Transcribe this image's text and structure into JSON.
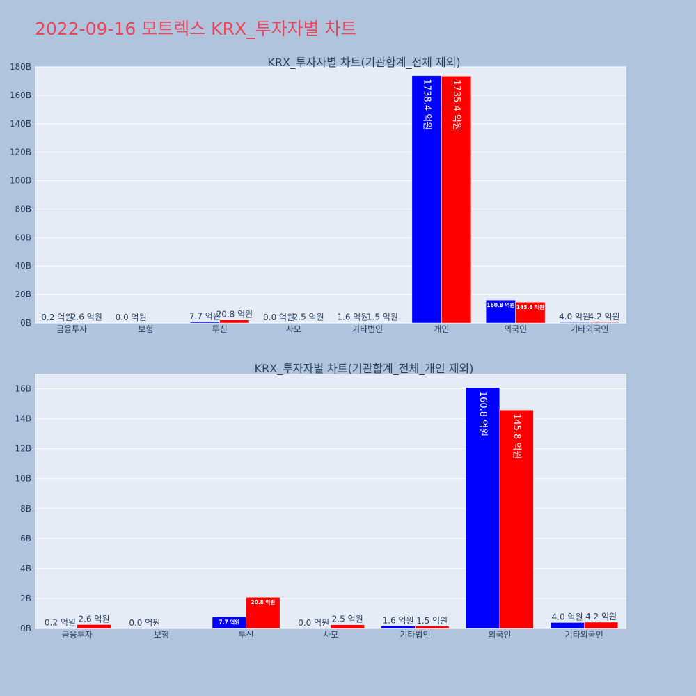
{
  "page_title": "2022-09-16 모트렉스 KRX_투자자별 차트",
  "colors": {
    "background": "#b0c4de",
    "plot_bg": "#e5ecf6",
    "title": "#e8465a",
    "series_buy": "#0000ff",
    "series_sell": "#ff0000"
  },
  "chart_data": [
    {
      "type": "bar",
      "title": "KRX_투자자별 차트(기관합계_전체 제외)",
      "categories": [
        "금융투자",
        "보험",
        "투신",
        "사모",
        "기타법인",
        "개인",
        "외국인",
        "기타외국인"
      ],
      "series": [
        {
          "values": [
            0.02,
            0.0,
            0.77,
            0.0,
            0.16,
            173.84,
            16.08,
            0.4
          ],
          "labels": [
            "0.2 억원",
            "0.0 억원",
            "7.7 억원",
            "0.0 억원",
            "1.6 억원",
            "1738.4 억원",
            "160.8 억원",
            "4.0 억원"
          ]
        },
        {
          "values": [
            0.26,
            0.0,
            2.08,
            0.25,
            0.15,
            173.54,
            14.58,
            0.42
          ],
          "labels": [
            "2.6 억원",
            "",
            "20.8 억원",
            "2.5 억원",
            "1.5 억원",
            "1735.4 억원",
            "145.8 억원",
            "4.2 억원"
          ]
        }
      ],
      "y_unit": "B",
      "ylim": [
        0,
        180
      ],
      "yticks": [
        0,
        20,
        40,
        60,
        80,
        100,
        120,
        140,
        160,
        180
      ],
      "grid": true,
      "legend": "none"
    },
    {
      "type": "bar",
      "title": "KRX_투자자별 차트(기관합계_전체_개인 제외)",
      "categories": [
        "금융투자",
        "보험",
        "투신",
        "사모",
        "기타법인",
        "외국인",
        "기타외국인"
      ],
      "series": [
        {
          "values": [
            0.02,
            0.0,
            0.77,
            0.0,
            0.16,
            16.08,
            0.4
          ],
          "labels": [
            "0.2 억원",
            "0.0 억원",
            "7.7 억원",
            "0.0 억원",
            "1.6 억원",
            "160.8 억원",
            "4.0 억원"
          ]
        },
        {
          "values": [
            0.26,
            0.0,
            2.08,
            0.25,
            0.15,
            14.58,
            0.42
          ],
          "labels": [
            "2.6 억원",
            "",
            "20.8 억원",
            "2.5 억원",
            "1.5 억원",
            "145.8 억원",
            "4.2 억원"
          ]
        }
      ],
      "y_unit": "B",
      "ylim": [
        0,
        17
      ],
      "yticks": [
        0,
        2,
        4,
        6,
        8,
        10,
        12,
        14,
        16
      ],
      "grid": true,
      "legend": "none"
    }
  ]
}
